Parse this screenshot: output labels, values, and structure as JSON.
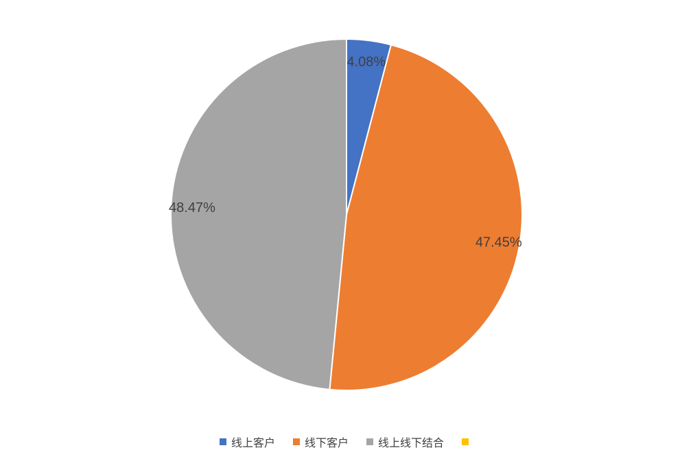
{
  "chart_data": {
    "type": "pie",
    "title": "",
    "series": [
      {
        "key": "online-customers",
        "name": "线上客户",
        "value": 4.08,
        "label": "4.08%",
        "color": "#4472C4"
      },
      {
        "key": "offline-customers",
        "name": "线下客户",
        "value": 47.45,
        "label": "47.45%",
        "color": "#ED7D31"
      },
      {
        "key": "online-offline-combined",
        "name": "线上线下结合",
        "value": 48.47,
        "label": "48.47%",
        "color": "#A5A5A5"
      },
      {
        "key": "fourth-category",
        "name": "",
        "value": 0,
        "label": "",
        "color": "#FFC000"
      }
    ],
    "start_angle_deg": 0,
    "direction": "clockwise",
    "slice_border_color": "#FFFFFF",
    "label_color": "#404040",
    "label_radius_frac": 0.88,
    "legend_position": "bottom",
    "center": {
      "x": 505,
      "y": 313
    },
    "radius": 256
  },
  "legend": {
    "items": [
      {
        "label": "线上客户",
        "color": "#4472C4"
      },
      {
        "label": "线下客户",
        "color": "#ED7D31"
      },
      {
        "label": "线上线下结合",
        "color": "#A5A5A5"
      },
      {
        "label": "",
        "color": "#FFC000"
      }
    ]
  }
}
